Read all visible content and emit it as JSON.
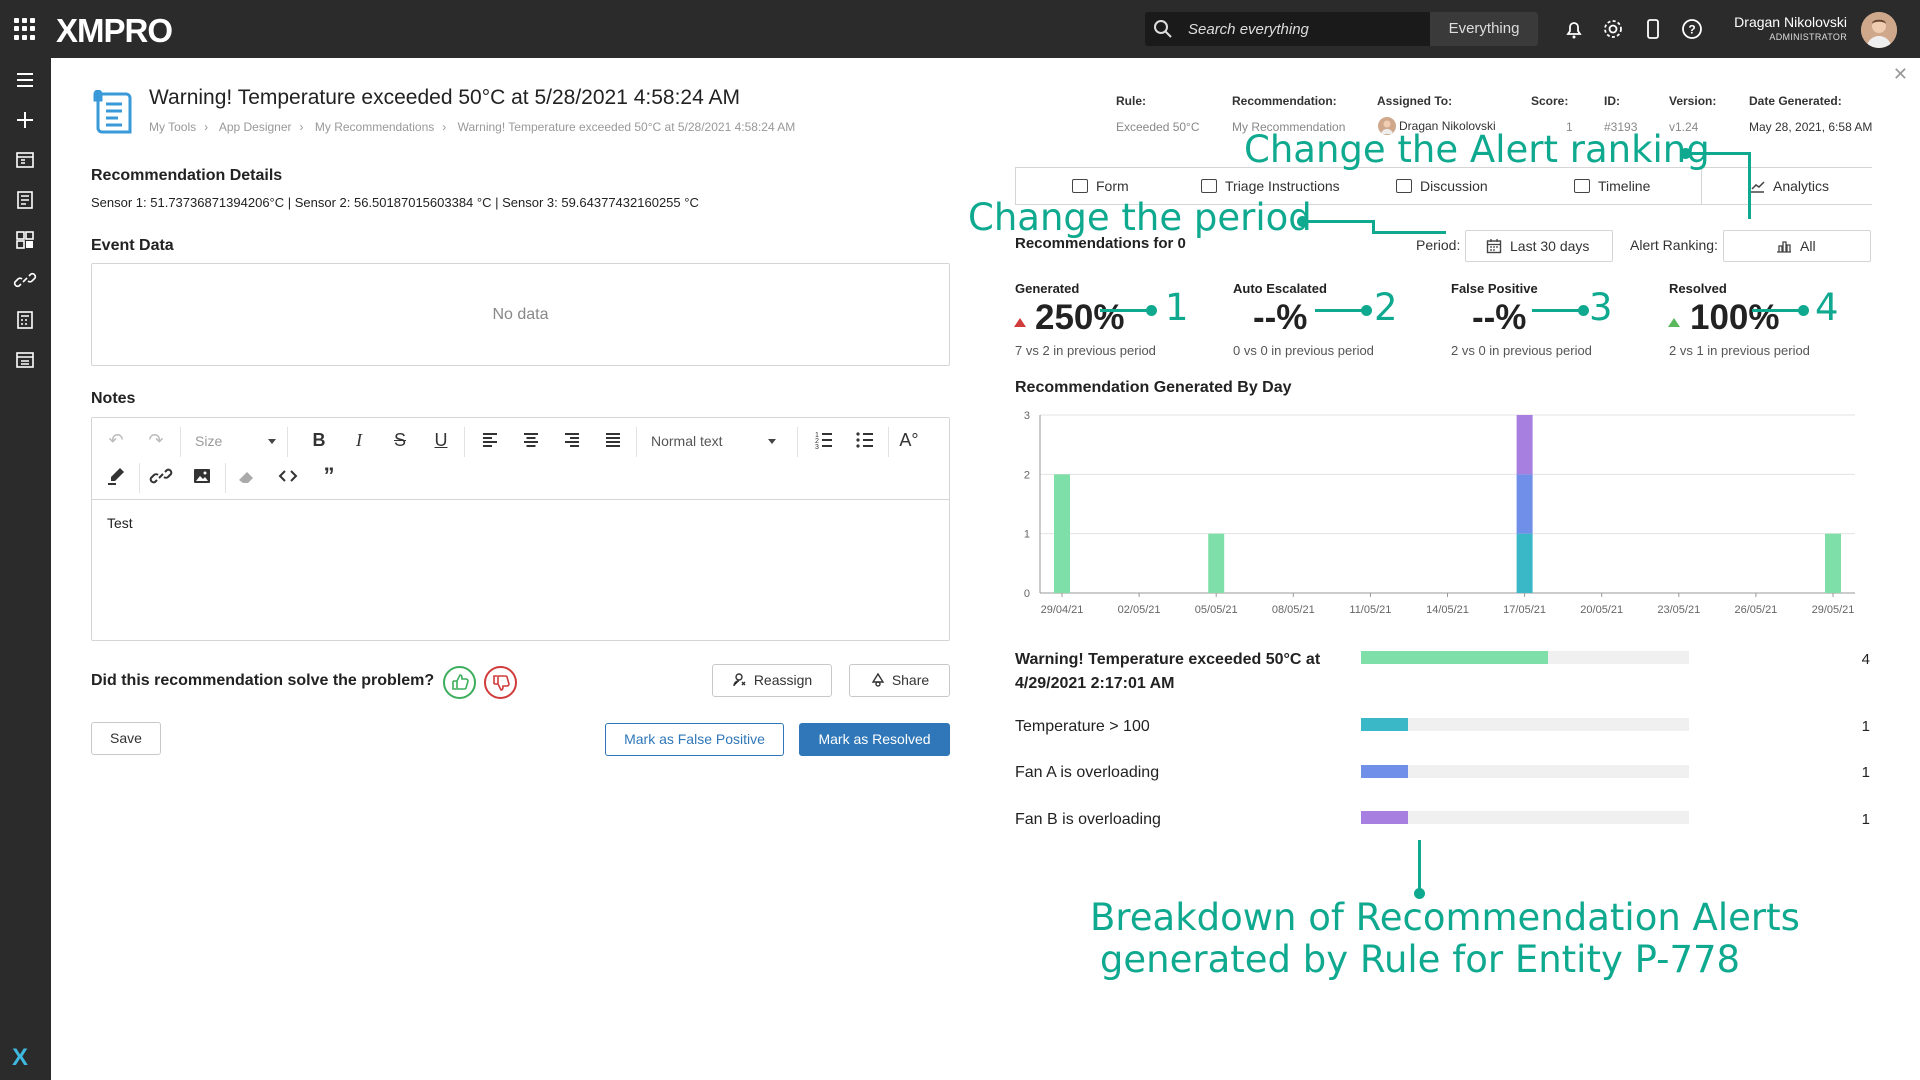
{
  "topbar": {
    "brand": "XMPRO",
    "search_placeholder": "Search everything",
    "search_scope": "Everything",
    "user_name": "Dragan Nikolovski",
    "user_role": "ADMINISTRATOR"
  },
  "page": {
    "title": "Warning! Temperature exceeded 50°C at 5/28/2021 4:58:24 AM",
    "breadcrumb": [
      "My Tools",
      "App Designer",
      "My Recommendations",
      "Warning! Temperature exceeded 50°C at 5/28/2021 4:58:24 AM"
    ]
  },
  "details": {
    "heading": "Recommendation Details",
    "text": "Sensor 1: 51.73736871394206°C | Sensor 2: 56.50187015603384 °C | Sensor 3: 59.64377432160255 °C"
  },
  "event_data": {
    "heading": "Event Data",
    "empty_text": "No data"
  },
  "notes": {
    "heading": "Notes",
    "size_label": "Size",
    "format_label": "Normal text",
    "content": "Test"
  },
  "feedback": {
    "question": "Did this recommendation solve the problem?",
    "reassign": "Reassign",
    "share": "Share",
    "save": "Save",
    "false_positive": "Mark as False Positive",
    "resolved": "Mark as Resolved"
  },
  "meta": {
    "rule_h": "Rule:",
    "rule_v": "Exceeded 50°C",
    "rec_h": "Recommendation:",
    "rec_v": "My Recommendation",
    "assigned_h": "Assigned To:",
    "assigned_v": "Dragan Nikolovski",
    "score_h": "Score:",
    "score_v": "1",
    "id_h": "ID:",
    "id_v": "#3193",
    "version_h": "Version:",
    "version_v": "v1.24",
    "date_h": "Date Generated:",
    "date_v": "May 28, 2021, 6:58 AM"
  },
  "tabs": [
    "Form",
    "Triage Instructions",
    "Discussion",
    "Timeline",
    "Analytics"
  ],
  "analytics": {
    "recs_for": "Recommendations for 0",
    "period_label": "Period:",
    "period_value": "Last 30 days",
    "ranking_label": "Alert Ranking:",
    "ranking_value": "All",
    "kpis": [
      {
        "label": "Generated",
        "value": "250%",
        "sub": "7 vs 2 in previous period",
        "trend": "up-red"
      },
      {
        "label": "Auto Escalated",
        "value": "--%",
        "sub": "0 vs 0 in previous period",
        "trend": "none"
      },
      {
        "label": "False Positive",
        "value": "--%",
        "sub": "2 vs 0 in previous period",
        "trend": "none"
      },
      {
        "label": "Resolved",
        "value": "100%",
        "sub": "2 vs 1 in previous period",
        "trend": "up-green"
      }
    ],
    "chart_title": "Recommendation Generated By Day"
  },
  "chart_data": {
    "type": "bar",
    "title": "Recommendation Generated By Day",
    "xlabel": "",
    "ylabel": "",
    "ylim": [
      0,
      3
    ],
    "yticks": [
      0,
      1,
      2,
      3
    ],
    "xticks": [
      "29/04/21",
      "02/05/21",
      "05/05/21",
      "08/05/21",
      "11/05/21",
      "14/05/21",
      "17/05/21",
      "20/05/21",
      "23/05/21",
      "26/05/21",
      "29/05/21"
    ],
    "x_day_range": [
      0,
      30
    ],
    "bars": [
      {
        "day": 0,
        "date": "29/04/21",
        "stack": [
          {
            "series": "Warning! Temperature exceeded 50°C",
            "value": 2,
            "color": "#7ee0a8"
          }
        ]
      },
      {
        "day": 6,
        "date": "05/05/21",
        "stack": [
          {
            "series": "Warning! Temperature exceeded 50°C",
            "value": 1,
            "color": "#7ee0a8"
          }
        ]
      },
      {
        "day": 18,
        "date": "17/05/21",
        "stack": [
          {
            "series": "Temperature > 100",
            "value": 1,
            "color": "#3ab8c8"
          },
          {
            "series": "Fan A is overloading",
            "value": 1,
            "color": "#6f8fe8"
          },
          {
            "series": "Fan B is overloading",
            "value": 1,
            "color": "#a77fe0"
          }
        ]
      },
      {
        "day": 30,
        "date": "29/05/21",
        "stack": [
          {
            "series": "Warning! Temperature exceeded 50°C",
            "value": 1,
            "color": "#7ee0a8"
          }
        ]
      }
    ]
  },
  "breakdown": {
    "max": 7,
    "items": [
      {
        "label": "Warning! Temperature exceeded 50°C at 4/29/2021 2:17:01 AM",
        "count": "4",
        "value": 4,
        "color": "#7ee0a8"
      },
      {
        "label": "Temperature > 100",
        "count": "1",
        "value": 1,
        "color": "#3ab8c8"
      },
      {
        "label": "Fan A is overloading",
        "count": "1",
        "value": 1,
        "color": "#6f8fe8"
      },
      {
        "label": "Fan B is overloading",
        "count": "1",
        "value": 1,
        "color": "#a77fe0"
      }
    ]
  },
  "annotations": {
    "alert_ranking": "Change the Alert ranking",
    "period": "Change the period",
    "n1": "1",
    "n2": "2",
    "n3": "3",
    "n4": "4",
    "breakdown_line1": "Breakdown of Recommendation Alerts",
    "breakdown_line2": "generated by Rule for Entity P-778"
  }
}
